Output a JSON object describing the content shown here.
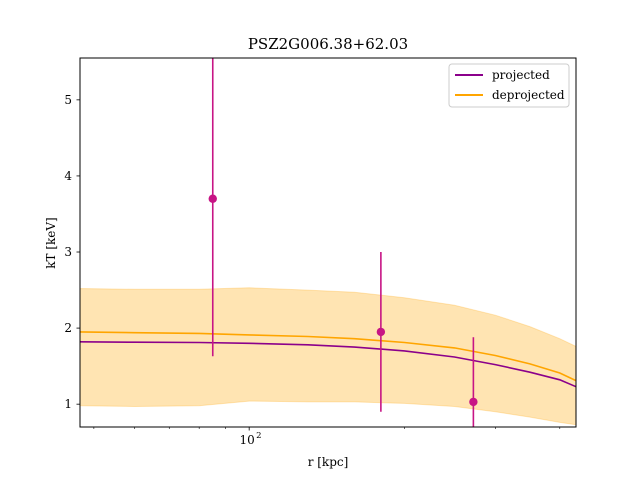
{
  "chart_data": {
    "type": "line",
    "title": "PSZ2G006.38+62.03",
    "xlabel": "r [kpc]",
    "ylabel": "kT [keV]",
    "xscale": "log",
    "xlim": [
      47,
      430
    ],
    "ylim": [
      0.7,
      5.55
    ],
    "xticks": [
      {
        "value": 100,
        "label": "10",
        "exp": "2"
      }
    ],
    "yticks": [
      {
        "value": 1,
        "label": "1"
      },
      {
        "value": 2,
        "label": "2"
      },
      {
        "value": 3,
        "label": "3"
      },
      {
        "value": 4,
        "label": "4"
      },
      {
        "value": 5,
        "label": "5"
      }
    ],
    "legend": {
      "position": "top-right",
      "entries": [
        {
          "label": "projected",
          "color": "#8b008b"
        },
        {
          "label": "deprojected",
          "color": "#ffa500"
        }
      ]
    },
    "grid": false,
    "series": [
      {
        "name": "projected",
        "color": "#8b008b",
        "x": [
          47,
          60,
          80,
          100,
          130,
          160,
          200,
          250,
          300,
          350,
          400,
          430
        ],
        "y": [
          1.82,
          1.815,
          1.81,
          1.8,
          1.78,
          1.75,
          1.7,
          1.62,
          1.52,
          1.42,
          1.32,
          1.23
        ]
      },
      {
        "name": "deprojected",
        "color": "#ffa500",
        "x": [
          47,
          60,
          80,
          100,
          130,
          160,
          200,
          250,
          300,
          350,
          400,
          430
        ],
        "y": [
          1.95,
          1.94,
          1.93,
          1.91,
          1.89,
          1.86,
          1.81,
          1.74,
          1.64,
          1.53,
          1.41,
          1.31
        ],
        "band_upper": [
          2.52,
          2.51,
          2.51,
          2.53,
          2.5,
          2.47,
          2.4,
          2.3,
          2.17,
          2.02,
          1.86,
          1.76
        ],
        "band_lower": [
          0.98,
          0.97,
          0.98,
          1.04,
          1.03,
          1.03,
          1.01,
          0.97,
          0.9,
          0.83,
          0.76,
          0.73
        ]
      }
    ],
    "points": {
      "color": "#c71585",
      "data": [
        {
          "x": 85,
          "y": 3.7,
          "ylow": 1.63,
          "yhigh": 5.55
        },
        {
          "x": 180,
          "y": 1.95,
          "ylow": 0.9,
          "yhigh": 3.0
        },
        {
          "x": 272,
          "y": 1.03,
          "ylow": 0.7,
          "yhigh": 1.88
        }
      ]
    }
  }
}
